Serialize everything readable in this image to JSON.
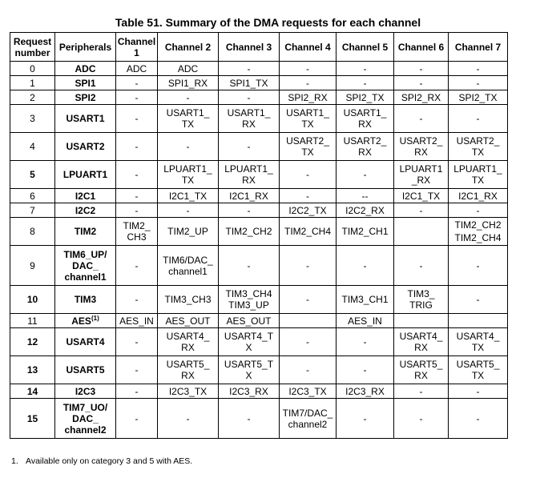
{
  "caption": "Table 51. Summary of the DMA requests for each channel",
  "headers": [
    "Request\nnumber",
    "Peripherals",
    "Channel\n1",
    "Channel 2",
    "Channel 3",
    "Channel 4",
    "Channel 5",
    "Channel 6",
    "Channel 7"
  ],
  "rows": [
    {
      "num": "0",
      "bold": false,
      "per": "ADC",
      "sup": "",
      "h": 18,
      "c": [
        "ADC",
        "ADC",
        "-",
        "-",
        "-",
        "-",
        "-"
      ]
    },
    {
      "num": "1",
      "bold": false,
      "per": "SPI1",
      "sup": "",
      "h": 18,
      "c": [
        "-",
        "SPI1_RX",
        "SPI1_TX",
        "-",
        "-",
        "-",
        "-"
      ]
    },
    {
      "num": "2",
      "bold": false,
      "per": "SPI2",
      "sup": "",
      "h": 18,
      "c": [
        "-",
        "-",
        "-",
        "SPI2_RX",
        "SPI2_TX",
        "SPI2_RX",
        "SPI2_TX"
      ]
    },
    {
      "num": "3",
      "bold": false,
      "per": "USART1",
      "sup": "",
      "h": 35,
      "c": [
        "-",
        "USART1_\nTX",
        "USART1_\nRX",
        "USART1_\nTX",
        "USART1_\nRX",
        "-",
        "-"
      ]
    },
    {
      "num": "4",
      "bold": false,
      "per": "USART2",
      "sup": "",
      "h": 35,
      "c": [
        "-",
        "-",
        "-",
        "USART2_\nTX",
        "USART2_\nRX",
        "USART2_\nRX",
        "USART2_\nTX"
      ]
    },
    {
      "num": "5",
      "bold": true,
      "per": "LPUART1",
      "sup": "",
      "h": 35,
      "c": [
        "-",
        "LPUART1_\nTX",
        "LPUART1_\nRX",
        "-",
        "-",
        "LPUART1\n_RX",
        "LPUART1_\nTX"
      ]
    },
    {
      "num": "6",
      "bold": false,
      "per": "I2C1",
      "sup": "",
      "h": 18,
      "c": [
        "-",
        "I2C1_TX",
        "I2C1_RX",
        "-",
        "--",
        "I2C1_TX",
        "I2C1_RX"
      ]
    },
    {
      "num": "7",
      "bold": false,
      "per": "I2C2",
      "sup": "",
      "h": 18,
      "c": [
        "-",
        "-",
        "-",
        "I2C2_TX",
        "I2C2_RX",
        "-",
        "-"
      ]
    },
    {
      "num": "8",
      "bold": false,
      "per": "TIM2",
      "sup": "",
      "h": 35,
      "c": [
        "TIM2_\nCH3",
        "TIM2_UP",
        "TIM2_CH2",
        "TIM2_CH4",
        "TIM2_CH1",
        "",
        "TIM2_CH2\nTIM2_CH4"
      ]
    },
    {
      "num": "9",
      "bold": false,
      "per": "TIM6_UP/\nDAC_\nchannel1",
      "sup": "",
      "h": 50,
      "c": [
        "-",
        "TIM6/DAC_\nchannel1",
        "-",
        "-",
        "-",
        "-",
        "-"
      ]
    },
    {
      "num": "10",
      "bold": true,
      "per": "TIM3",
      "sup": "",
      "h": 35,
      "c": [
        "-",
        "TIM3_CH3",
        "TIM3_CH4\nTIM3_UP",
        "-",
        "TIM3_CH1",
        "TIM3_\nTRIG",
        "-"
      ]
    },
    {
      "num": "11",
      "bold": false,
      "per": "AES",
      "sup": "(1)",
      "h": 18,
      "c": [
        "AES_IN",
        "AES_OUT",
        "AES_OUT",
        "",
        "AES_IN",
        "",
        ""
      ]
    },
    {
      "num": "12",
      "bold": true,
      "per": "USART4",
      "sup": "",
      "h": 35,
      "c": [
        "-",
        "USART4_\nRX",
        "USART4_T\nX",
        "-",
        "-",
        "USART4_\nRX",
        "USART4_\nTX"
      ]
    },
    {
      "num": "13",
      "bold": true,
      "per": "USART5",
      "sup": "",
      "h": 35,
      "c": [
        "-",
        "USART5_\nRX",
        "USART5_T\nX",
        "-",
        "-",
        "USART5_\nRX",
        "USART5_\nTX"
      ]
    },
    {
      "num": "14",
      "bold": true,
      "per": "I2C3",
      "sup": "",
      "h": 18,
      "c": [
        "-",
        "I2C3_TX",
        "I2C3_RX",
        "I2C3_TX",
        "I2C3_RX",
        "-",
        "-"
      ]
    },
    {
      "num": "15",
      "bold": true,
      "per": "TIM7_UO/\nDAC_\nchannel2",
      "sup": "",
      "h": 50,
      "c": [
        "-",
        "-",
        "-",
        "TIM7/DAC_\nchannel2",
        "-",
        "-",
        "-"
      ]
    }
  ],
  "footnote": {
    "marker": "1.",
    "text": "Available only on category 3 and 5 with AES."
  }
}
